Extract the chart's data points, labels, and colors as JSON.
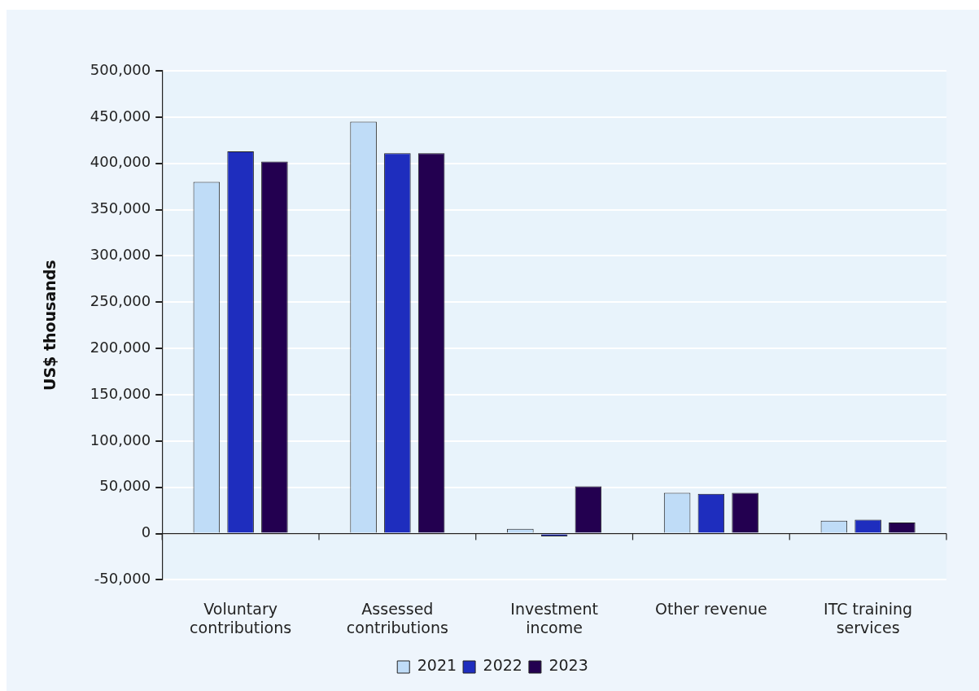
{
  "chart_data": {
    "type": "bar",
    "ylabel": "US$ thousands",
    "categories": [
      "Voluntary contributions",
      "Assessed contributions",
      "Investment income",
      "Other revenue",
      "ITC training services"
    ],
    "series": [
      {
        "name": "2021",
        "color": "#bfdcf7",
        "values": [
          380000,
          445000,
          5000,
          44000,
          14000
        ]
      },
      {
        "name": "2022",
        "color": "#1e2dbe",
        "values": [
          413000,
          411000,
          -3000,
          43000,
          15000
        ]
      },
      {
        "name": "2023",
        "color": "#230050",
        "values": [
          402000,
          411000,
          51000,
          44000,
          12000
        ]
      }
    ],
    "ylim": [
      -50000,
      500000
    ],
    "yticks": [
      {
        "value": -50000,
        "label": "-50,000"
      },
      {
        "value": 0,
        "label": "0"
      },
      {
        "value": 50000,
        "label": "50,000"
      },
      {
        "value": 100000,
        "label": "100,000"
      },
      {
        "value": 150000,
        "label": "150,000"
      },
      {
        "value": 200000,
        "label": "200,000"
      },
      {
        "value": 250000,
        "label": "250,000"
      },
      {
        "value": 300000,
        "label": "300,000"
      },
      {
        "value": 350000,
        "label": "350,000"
      },
      {
        "value": 400000,
        "label": "400,000"
      },
      {
        "value": 450000,
        "label": "450,000"
      },
      {
        "value": 500000,
        "label": "500,000"
      }
    ],
    "grid": "y",
    "legend": "bottom"
  }
}
